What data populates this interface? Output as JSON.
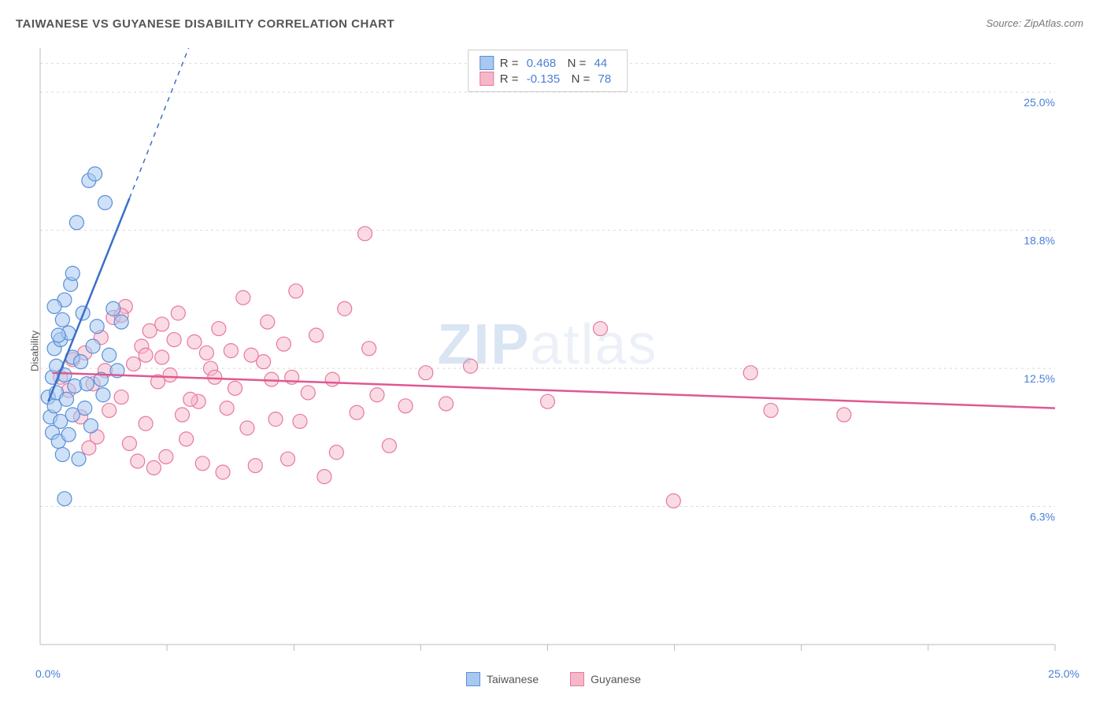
{
  "title": "TAIWANESE VS GUYANESE DISABILITY CORRELATION CHART",
  "source": "Source: ZipAtlas.com",
  "watermark_bold": "ZIP",
  "watermark_light": "atlas",
  "ylabel": "Disability",
  "chart": {
    "type": "scatter",
    "xlim": [
      0,
      25
    ],
    "ylim": [
      0,
      27
    ],
    "xtick_lines": [
      3.125,
      6.25,
      9.375,
      12.5,
      15.625,
      18.75,
      21.875,
      25
    ],
    "ytick_gridlines": [
      6.25,
      12.5,
      18.75,
      25,
      26.3
    ],
    "ytick_labels": [
      {
        "v": 6.25,
        "label": "6.3%"
      },
      {
        "v": 12.5,
        "label": "12.5%"
      },
      {
        "v": 18.75,
        "label": "18.8%"
      },
      {
        "v": 25.0,
        "label": "25.0%"
      }
    ],
    "x_origin_label": "0.0%",
    "x_max_label": "25.0%",
    "background_color": "#ffffff",
    "grid_color": "#d9d9d9",
    "axis_color": "#bbbbbb",
    "marker_radius": 9,
    "marker_stroke_width": 1.2,
    "trend_line_width": 2.5
  },
  "series": [
    {
      "name": "Taiwanese",
      "legend_label": "Taiwanese",
      "fill_color": "#a8c8f0",
      "fill_opacity": 0.55,
      "stroke_color": "#5a8fd8",
      "line_color": "#3b6fc7",
      "r_label": "R =",
      "r_value": "0.468",
      "n_label": "N =",
      "n_value": "44",
      "trend": {
        "x1": 0.2,
        "y1": 11.0,
        "x2": 2.2,
        "y2": 20.2,
        "dash_x2": 4.3,
        "dash_y2": 30.0
      },
      "points": [
        [
          0.2,
          11.2
        ],
        [
          0.25,
          10.3
        ],
        [
          0.3,
          9.6
        ],
        [
          0.3,
          12.1
        ],
        [
          0.35,
          13.4
        ],
        [
          0.35,
          10.8
        ],
        [
          0.4,
          12.6
        ],
        [
          0.4,
          11.4
        ],
        [
          0.45,
          9.2
        ],
        [
          0.5,
          13.8
        ],
        [
          0.5,
          10.1
        ],
        [
          0.55,
          14.7
        ],
        [
          0.55,
          8.6
        ],
        [
          0.6,
          12.2
        ],
        [
          0.6,
          15.6
        ],
        [
          0.65,
          11.1
        ],
        [
          0.7,
          14.1
        ],
        [
          0.7,
          9.5
        ],
        [
          0.75,
          16.3
        ],
        [
          0.8,
          10.4
        ],
        [
          0.8,
          13.0
        ],
        [
          0.85,
          11.7
        ],
        [
          0.9,
          19.1
        ],
        [
          0.95,
          8.4
        ],
        [
          1.0,
          12.8
        ],
        [
          1.05,
          15.0
        ],
        [
          1.1,
          10.7
        ],
        [
          1.15,
          11.8
        ],
        [
          1.2,
          21.0
        ],
        [
          1.25,
          9.9
        ],
        [
          1.3,
          13.5
        ],
        [
          1.35,
          21.3
        ],
        [
          1.4,
          14.4
        ],
        [
          1.5,
          12.0
        ],
        [
          1.55,
          11.3
        ],
        [
          1.6,
          20.0
        ],
        [
          1.7,
          13.1
        ],
        [
          1.8,
          15.2
        ],
        [
          1.9,
          12.4
        ],
        [
          2.0,
          14.6
        ],
        [
          0.6,
          6.6
        ],
        [
          0.45,
          14.0
        ],
        [
          0.35,
          15.3
        ],
        [
          0.8,
          16.8
        ]
      ]
    },
    {
      "name": "Guyanese",
      "legend_label": "Guyanese",
      "fill_color": "#f5b8c8",
      "fill_opacity": 0.5,
      "stroke_color": "#e878a0",
      "line_color": "#e05890",
      "r_label": "R =",
      "r_value": "-0.135",
      "n_label": "N =",
      "n_value": "78",
      "trend": {
        "x1": 0.3,
        "y1": 12.3,
        "x2": 25.0,
        "y2": 10.7
      },
      "points": [
        [
          0.5,
          12.1
        ],
        [
          0.7,
          11.5
        ],
        [
          0.8,
          12.9
        ],
        [
          1.0,
          10.3
        ],
        [
          1.1,
          13.2
        ],
        [
          1.3,
          11.8
        ],
        [
          1.4,
          9.4
        ],
        [
          1.5,
          13.9
        ],
        [
          1.6,
          12.4
        ],
        [
          1.7,
          10.6
        ],
        [
          1.8,
          14.8
        ],
        [
          2.0,
          11.2
        ],
        [
          2.1,
          15.3
        ],
        [
          2.2,
          9.1
        ],
        [
          2.3,
          12.7
        ],
        [
          2.5,
          13.5
        ],
        [
          2.6,
          10.0
        ],
        [
          2.7,
          14.2
        ],
        [
          2.8,
          8.0
        ],
        [
          2.9,
          11.9
        ],
        [
          3.0,
          13.0
        ],
        [
          3.1,
          8.5
        ],
        [
          3.2,
          12.2
        ],
        [
          3.4,
          15.0
        ],
        [
          3.5,
          10.4
        ],
        [
          3.6,
          9.3
        ],
        [
          3.8,
          13.7
        ],
        [
          3.9,
          11.0
        ],
        [
          4.0,
          8.2
        ],
        [
          4.2,
          12.5
        ],
        [
          4.4,
          14.3
        ],
        [
          4.5,
          7.8
        ],
        [
          4.7,
          13.3
        ],
        [
          4.8,
          11.6
        ],
        [
          5.0,
          15.7
        ],
        [
          5.1,
          9.8
        ],
        [
          5.3,
          8.1
        ],
        [
          5.5,
          12.8
        ],
        [
          5.6,
          14.6
        ],
        [
          5.8,
          10.2
        ],
        [
          6.0,
          13.6
        ],
        [
          6.1,
          8.4
        ],
        [
          6.3,
          16.0
        ],
        [
          6.6,
          11.4
        ],
        [
          6.8,
          14.0
        ],
        [
          7.0,
          7.6
        ],
        [
          7.2,
          12.0
        ],
        [
          7.3,
          8.7
        ],
        [
          7.5,
          15.2
        ],
        [
          7.8,
          10.5
        ],
        [
          8.0,
          18.6
        ],
        [
          8.1,
          13.4
        ],
        [
          8.3,
          11.3
        ],
        [
          8.6,
          9.0
        ],
        [
          9.0,
          10.8
        ],
        [
          9.5,
          12.3
        ],
        [
          10.0,
          10.9
        ],
        [
          10.6,
          12.6
        ],
        [
          12.5,
          11.0
        ],
        [
          13.8,
          14.3
        ],
        [
          15.6,
          6.5
        ],
        [
          17.5,
          12.3
        ],
        [
          18.0,
          10.6
        ],
        [
          19.8,
          10.4
        ],
        [
          4.3,
          12.1
        ],
        [
          2.4,
          8.3
        ],
        [
          3.3,
          13.8
        ],
        [
          1.2,
          8.9
        ],
        [
          5.7,
          12.0
        ],
        [
          6.4,
          10.1
        ],
        [
          4.6,
          10.7
        ],
        [
          3.7,
          11.1
        ],
        [
          2.6,
          13.1
        ],
        [
          4.1,
          13.2
        ],
        [
          5.2,
          13.1
        ],
        [
          6.2,
          12.1
        ],
        [
          2.0,
          14.9
        ],
        [
          3.0,
          14.5
        ]
      ]
    }
  ]
}
